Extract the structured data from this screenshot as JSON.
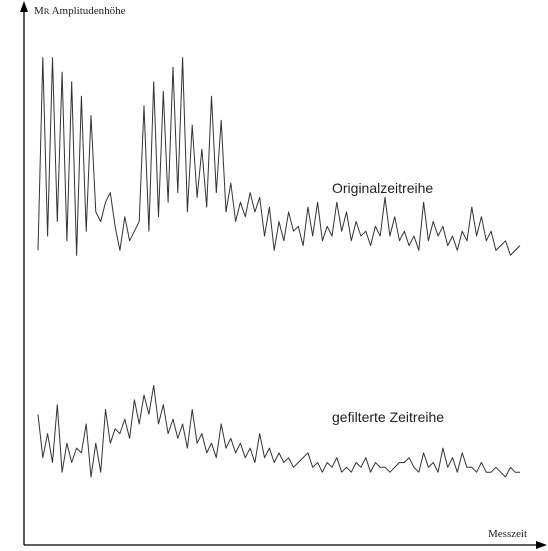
{
  "chart_data": {
    "type": "line",
    "title": "",
    "ylabel_prefix": "M",
    "ylabel_subscript": "R",
    "ylabel_text": " Amplitudenhöhe",
    "xlabel": "Messzeit",
    "grid": false,
    "legend": "none",
    "ylim": [
      0,
      100
    ],
    "x_range": [
      0,
      100
    ],
    "series": [
      {
        "name": "Originalzeitreihe",
        "color": "#333333",
        "x": [
          0,
          1,
          2,
          3,
          4,
          5,
          6,
          7,
          8,
          9,
          10,
          11,
          12,
          13,
          14,
          15,
          16,
          17,
          18,
          19,
          20,
          21,
          22,
          23,
          24,
          25,
          26,
          27,
          28,
          29,
          30,
          31,
          32,
          33,
          34,
          35,
          36,
          37,
          38,
          39,
          40,
          41,
          42,
          43,
          44,
          45,
          46,
          47,
          48,
          49,
          50,
          51,
          52,
          53,
          54,
          55,
          56,
          57,
          58,
          59,
          60,
          61,
          62,
          63,
          64,
          65,
          66,
          67,
          68,
          69,
          70,
          71,
          72,
          73,
          74,
          75,
          76,
          77,
          78,
          79,
          80,
          81,
          82,
          83,
          84,
          85,
          86,
          87,
          88,
          89,
          90,
          91,
          92,
          93,
          94,
          95,
          96,
          97,
          98,
          99,
          100
        ],
        "y": [
          58,
          98,
          61,
          98,
          64,
          95,
          60,
          93,
          57,
          90,
          62,
          86,
          66,
          64,
          68,
          70,
          63,
          58,
          65,
          60,
          62,
          64,
          88,
          62,
          93,
          65,
          91,
          68,
          96,
          70,
          98,
          66,
          84,
          69,
          79,
          67,
          90,
          70,
          85,
          66,
          72,
          64,
          68,
          65,
          70,
          66,
          69,
          61,
          67,
          58,
          64,
          60,
          66,
          62,
          63,
          59,
          67,
          61,
          68,
          60,
          63,
          61,
          68,
          62,
          66,
          60,
          64,
          61,
          62,
          59,
          63,
          61,
          69,
          61,
          65,
          60,
          62,
          59,
          61,
          58,
          68,
          60,
          64,
          61,
          63,
          59,
          61,
          58,
          62,
          60,
          67,
          61,
          65,
          60,
          62,
          58,
          59,
          60,
          57,
          58,
          59
        ]
      },
      {
        "name": "gefilterte Zeitreihe",
        "color": "#333333",
        "x": [
          0,
          1,
          2,
          3,
          4,
          5,
          6,
          7,
          8,
          9,
          10,
          11,
          12,
          13,
          14,
          15,
          16,
          17,
          18,
          19,
          20,
          21,
          22,
          23,
          24,
          25,
          26,
          27,
          28,
          29,
          30,
          31,
          32,
          33,
          34,
          35,
          36,
          37,
          38,
          39,
          40,
          41,
          42,
          43,
          44,
          45,
          46,
          47,
          48,
          49,
          50,
          51,
          52,
          53,
          54,
          55,
          56,
          57,
          58,
          59,
          60,
          61,
          62,
          63,
          64,
          65,
          66,
          67,
          68,
          69,
          70,
          71,
          72,
          73,
          74,
          75,
          76,
          77,
          78,
          79,
          80,
          81,
          82,
          83,
          84,
          85,
          86,
          87,
          88,
          89,
          90,
          91,
          92,
          93,
          94,
          95,
          96,
          97,
          98,
          99,
          100
        ],
        "y": [
          24,
          15,
          20,
          14,
          26,
          12,
          18,
          14,
          17,
          16,
          22,
          11,
          18,
          12,
          25,
          18,
          21,
          20,
          23,
          19,
          27,
          22,
          28,
          24,
          30,
          22,
          26,
          20,
          23,
          19,
          22,
          17,
          25,
          18,
          20,
          16,
          18,
          15,
          22,
          17,
          19,
          16,
          18,
          15,
          17,
          14,
          20,
          15,
          17,
          14,
          16,
          14,
          15,
          13,
          14,
          15,
          16,
          13,
          14,
          12,
          14,
          13,
          15,
          12,
          13,
          12,
          14,
          13,
          15,
          12,
          14,
          13,
          13,
          12,
          13,
          14,
          14,
          15,
          13,
          12,
          16,
          13,
          14,
          12,
          17,
          13,
          15,
          12,
          16,
          13,
          13,
          12,
          14,
          12,
          12,
          13,
          12,
          11,
          13,
          12,
          12
        ]
      }
    ]
  }
}
